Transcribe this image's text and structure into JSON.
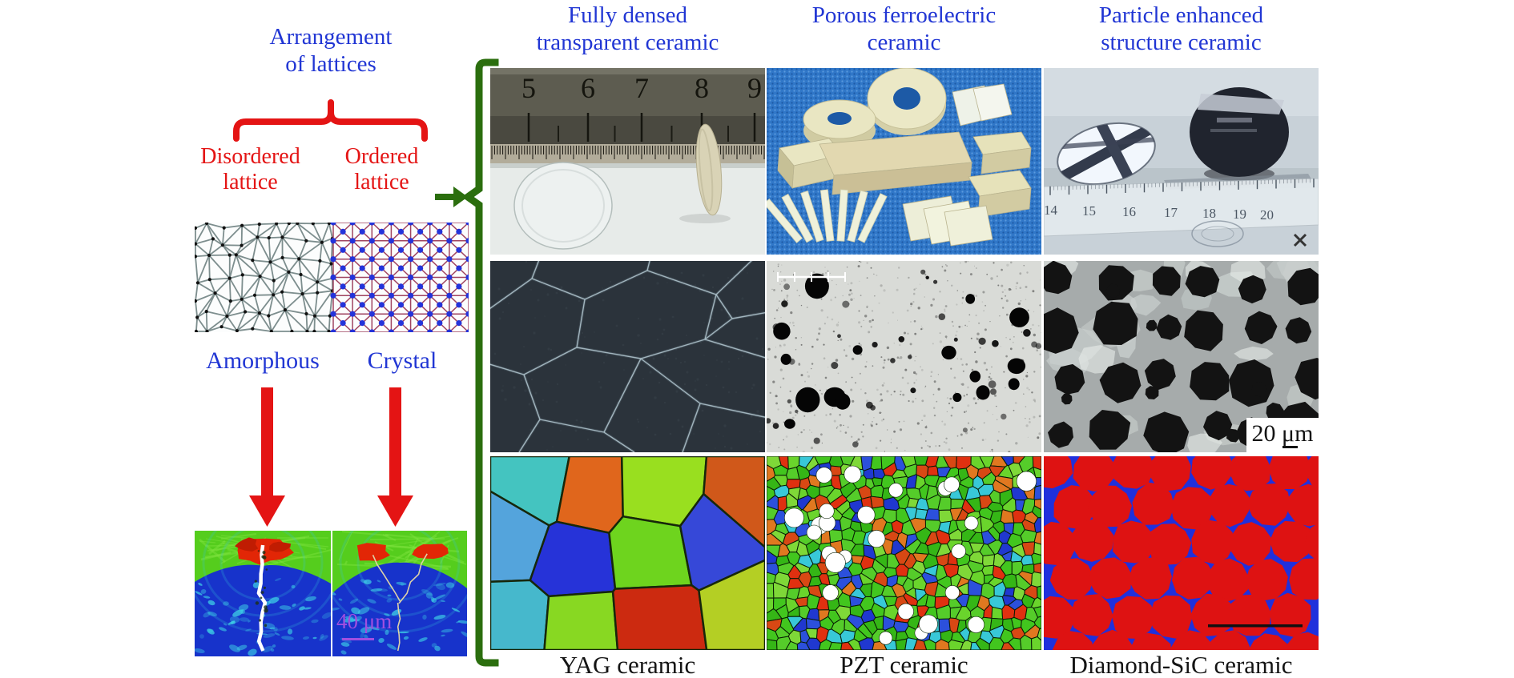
{
  "figure": {
    "colors": {
      "heading_blue": "#2136d4",
      "annotation_red": "#e41414",
      "bracket_green": "#2b6e0e",
      "scale_purple": "#a04fe0",
      "caption_black": "#141414"
    },
    "left_panel": {
      "title_line1": "Arrangement",
      "title_line2": "of lattices",
      "disordered_line1": "Disordered",
      "disordered_line2": "lattice",
      "ordered_line1": "Ordered",
      "ordered_line2": "lattice",
      "amorphous_label": "Amorphous",
      "crystal_label": "Crystal",
      "crack_scale_label": "40 μm"
    },
    "columns": [
      {
        "header_line1": "Fully densed",
        "header_line2": "transparent ceramic",
        "caption": "YAG ceramic"
      },
      {
        "header_line1": "Porous ferroelectric",
        "header_line2": "ceramic",
        "caption": "PZT ceramic"
      },
      {
        "header_line1": "Particle enhanced",
        "header_line2": "structure ceramic",
        "caption": "Diamond-SiC ceramic"
      }
    ],
    "photo_ruler_top_numbers": [
      "5",
      "6",
      "7",
      "8",
      "9"
    ],
    "photo_ruler_bottom_numbers": [
      "14",
      "15",
      "16",
      "17",
      "18",
      "19",
      "20"
    ],
    "sem_scale_label": "20 μm"
  }
}
